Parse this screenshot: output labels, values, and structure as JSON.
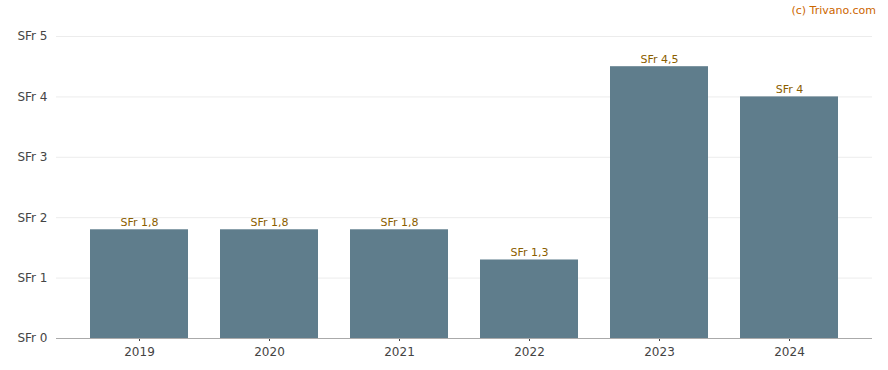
{
  "chart_data": {
    "type": "bar",
    "categories": [
      "2019",
      "2020",
      "2021",
      "2022",
      "2023",
      "2024"
    ],
    "values": [
      1.8,
      1.8,
      1.8,
      1.3,
      4.5,
      4.0
    ],
    "value_labels": [
      "SFr 1,8",
      "SFr 1,8",
      "SFr 1,8",
      "SFr 1,3",
      "SFr 4,5",
      "SFr 4"
    ],
    "data_labels": true,
    "color": "#5f7d8c",
    "ylim": [
      0,
      5
    ],
    "yticks": [
      {
        "value": 0,
        "label": "SFr 0"
      },
      {
        "value": 1,
        "label": "SFr 1"
      },
      {
        "value": 2,
        "label": "SFr 2"
      },
      {
        "value": 3,
        "label": "SFr 3"
      },
      {
        "value": 4,
        "label": "SFr 4"
      },
      {
        "value": 5,
        "label": "SFr 5"
      }
    ],
    "grid": true,
    "annotation": "(c) Trivano.com"
  }
}
